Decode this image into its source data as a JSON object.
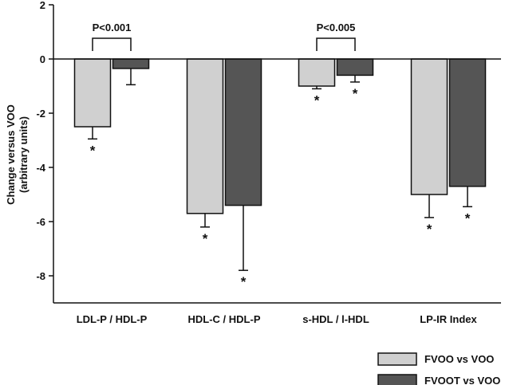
{
  "chart_data": {
    "type": "bar",
    "ylabel_lines": [
      "Change versus VOO",
      "(arbitrary units)"
    ],
    "categories": [
      "LDL-P / HDL-P",
      "HDL-C / HDL-P",
      "s-HDL / l-HDL",
      "LP-IR Index"
    ],
    "ylim": [
      -9,
      2
    ],
    "yticks": [
      2,
      0,
      -2,
      -4,
      -6,
      -8
    ],
    "series": [
      {
        "name": "FVOO vs VOO",
        "color": "#d0d0d0",
        "values": [
          -2.5,
          -5.7,
          -1.0,
          -5.0
        ],
        "errors": [
          0.45,
          0.5,
          0.1,
          0.85
        ],
        "significant": [
          true,
          true,
          true,
          true
        ]
      },
      {
        "name": "FVOOT vs VOO",
        "color": "#555555",
        "values": [
          -0.35,
          -5.4,
          -0.6,
          -4.7
        ],
        "errors": [
          0.6,
          2.4,
          0.25,
          0.75
        ],
        "significant": [
          false,
          true,
          true,
          true
        ]
      }
    ],
    "comparisons": [
      {
        "category_index": 0,
        "label": "P<0.001"
      },
      {
        "category_index": 2,
        "label": "P<0.005"
      }
    ],
    "significance_marker": "*",
    "legend_position": "bottom-right",
    "grid": false
  }
}
